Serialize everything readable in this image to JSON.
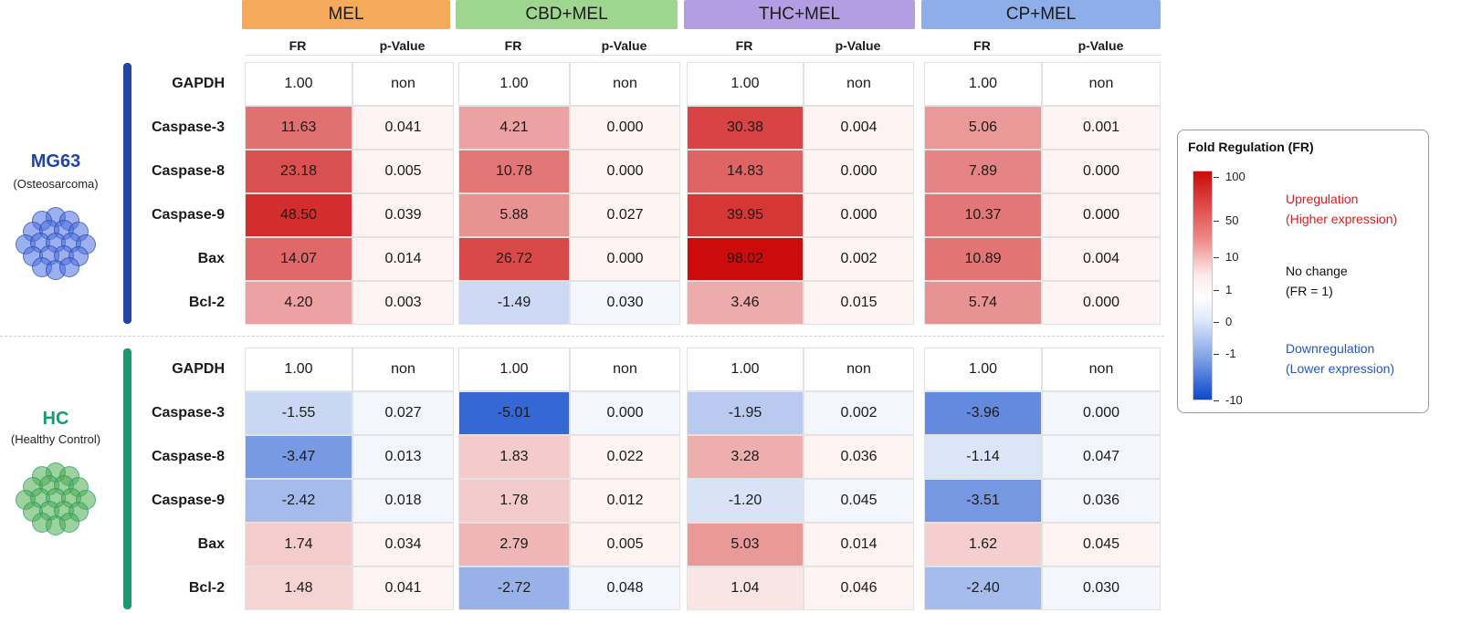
{
  "treatments": [
    {
      "label": "MEL",
      "color": "#f4a95b"
    },
    {
      "label": "CBD+MEL",
      "color": "#9ed68f"
    },
    {
      "label": "THC+MEL",
      "color": "#b39ee3"
    },
    {
      "label": "CP+MEL",
      "color": "#8eaeea"
    }
  ],
  "subheaders": {
    "fr": "FR",
    "p": "p-Value"
  },
  "groups": [
    {
      "title": "MG63",
      "subtitle": "(Osteosarcoma)",
      "title_color": "#1f45a8",
      "bar_color": "#1f45a8",
      "icon_color": "#4a6ee0"
    },
    {
      "title": "HC",
      "subtitle": "(Healthy Control)",
      "title_color": "#1a9a6c",
      "bar_color": "#1a9a6c",
      "icon_color": "#4cab4c"
    }
  ],
  "chart_data": {
    "type": "heatmap",
    "genes": [
      "GAPDH",
      "Caspase-3",
      "Caspase-8",
      "Caspase-9",
      "Bax",
      "Bcl-2"
    ],
    "treatments": [
      "MEL",
      "CBD+MEL",
      "THC+MEL",
      "CP+MEL"
    ],
    "series": [
      {
        "name": "MG63",
        "fr": [
          [
            "1.00",
            "1.00",
            "1.00",
            "1.00"
          ],
          [
            "11.63",
            "4.21",
            "30.38",
            "5.06"
          ],
          [
            "23.18",
            "10.78",
            "14.83",
            "7.89"
          ],
          [
            "48.50",
            "5.88",
            "39.95",
            "10.37"
          ],
          [
            "14.07",
            "26.72",
            "98.02",
            "10.89"
          ],
          [
            "4.20",
            "-1.49",
            "3.46",
            "5.74"
          ]
        ],
        "p": [
          [
            "non",
            "non",
            "non",
            "non"
          ],
          [
            "0.041",
            "0.000",
            "0.004",
            "0.001"
          ],
          [
            "0.005",
            "0.000",
            "0.000",
            "0.000"
          ],
          [
            "0.039",
            "0.027",
            "0.000",
            "0.000"
          ],
          [
            "0.014",
            "0.000",
            "0.002",
            "0.004"
          ],
          [
            "0.003",
            "0.030",
            "0.015",
            "0.000"
          ]
        ]
      },
      {
        "name": "HC",
        "fr": [
          [
            "1.00",
            "1.00",
            "1.00",
            "1.00"
          ],
          [
            "-1.55",
            "-5.01",
            "-1.95",
            "-3.96"
          ],
          [
            "-3.47",
            "1.83",
            "3.28",
            "-1.14"
          ],
          [
            "-2.42",
            "1.78",
            "-1.20",
            "-3.51"
          ],
          [
            "1.74",
            "2.79",
            "5.03",
            "1.62"
          ],
          [
            "1.48",
            "-2.72",
            "1.04",
            "-2.40"
          ]
        ],
        "p": [
          [
            "non",
            "non",
            "non",
            "non"
          ],
          [
            "0.027",
            "0.000",
            "0.002",
            "0.000"
          ],
          [
            "0.013",
            "0.022",
            "0.036",
            "0.047"
          ],
          [
            "0.018",
            "0.012",
            "0.045",
            "0.036"
          ],
          [
            "0.034",
            "0.005",
            "0.014",
            "0.045"
          ],
          [
            "0.041",
            "0.048",
            "0.046",
            "0.030"
          ]
        ]
      }
    ],
    "colorscale": {
      "title": "Fold Regulation (FR)",
      "ticks": [
        "100",
        "50",
        "10",
        "1",
        "0",
        "-1",
        "-10"
      ],
      "tick_values": [
        100,
        50,
        10,
        1,
        0,
        -1,
        -10
      ],
      "max_color": "#cc0a0a",
      "mid_color": "#ffffff",
      "min_color": "#0b48cc"
    },
    "legend": {
      "up": [
        "Upregulation",
        "(Higher expression)"
      ],
      "none": [
        "No change",
        "(FR = 1)"
      ],
      "down": [
        "Downregulation",
        "(Lower expression)"
      ],
      "up_color": "#d42020",
      "down_color": "#2456c4"
    }
  }
}
